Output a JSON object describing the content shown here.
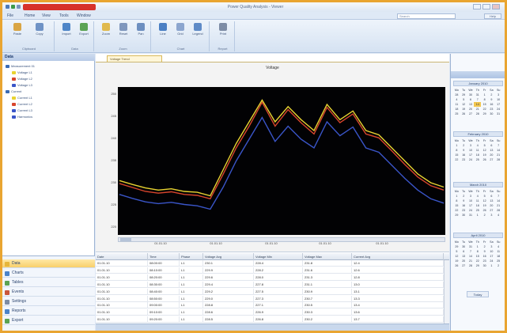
{
  "window": {
    "title": "Power Quality Analysis - Viewer",
    "colors": {
      "frame": "#e9a531",
      "active_tab": "#d7322b"
    }
  },
  "menu": {
    "items": [
      "File",
      "Home",
      "View",
      "Tools",
      "Window"
    ],
    "search_placeholder": "Search",
    "help_label": "Help"
  },
  "ribbon": {
    "groups": [
      {
        "label": "Clipboard",
        "buttons": [
          "Paste",
          "Copy"
        ]
      },
      {
        "label": "Data",
        "buttons": [
          "Import",
          "Export"
        ]
      },
      {
        "label": "Zoom",
        "buttons": [
          "Zoom",
          "Reset",
          "Pan"
        ]
      },
      {
        "label": "Chart",
        "buttons": [
          "Line",
          "Grid",
          "Legend"
        ]
      },
      {
        "label": "Report",
        "buttons": [
          "Print"
        ]
      }
    ]
  },
  "nav": {
    "header": "Data",
    "tree": [
      {
        "label": "Measurement 01",
        "color": "#3b6bb5",
        "level": 0
      },
      {
        "label": "Voltage L1",
        "color": "#e8d331",
        "level": 1
      },
      {
        "label": "Voltage L2",
        "color": "#d8452c",
        "level": 1
      },
      {
        "label": "Voltage L3",
        "color": "#3a55c8",
        "level": 1
      },
      {
        "label": "Current",
        "color": "#3b6bb5",
        "level": 0
      },
      {
        "label": "Current L1",
        "color": "#e8d331",
        "level": 1
      },
      {
        "label": "Current L2",
        "color": "#d8452c",
        "level": 1
      },
      {
        "label": "Current L3",
        "color": "#3a55c8",
        "level": 1
      },
      {
        "label": "Harmonics",
        "color": "#3a55c8",
        "level": 1
      }
    ],
    "buttons": [
      {
        "label": "Data",
        "icon": "folder-icon",
        "color": "#e6b63c",
        "selected": true
      },
      {
        "label": "Charts",
        "icon": "chart-icon",
        "color": "#4b83c9",
        "selected": false
      },
      {
        "label": "Tables",
        "icon": "table-icon",
        "color": "#5ba353",
        "selected": false
      },
      {
        "label": "Events",
        "icon": "event-icon",
        "color": "#c9563b",
        "selected": false
      },
      {
        "label": "Settings",
        "icon": "gear-icon",
        "color": "#7d8ca5",
        "selected": false
      },
      {
        "label": "Reports",
        "icon": "report-icon",
        "color": "#4b83c9",
        "selected": false
      },
      {
        "label": "Export",
        "icon": "export-icon",
        "color": "#5ba353",
        "selected": false
      }
    ]
  },
  "main": {
    "doc_tab": "Voltage Trend",
    "chart_title": "Voltage",
    "y_ticks": [
      "250",
      "245",
      "240",
      "235",
      "230",
      "225",
      "220"
    ],
    "x_ticks": [
      [
        "08:00:00",
        "01.01.10"
      ],
      [
        "10:00:00",
        "01.01.10"
      ],
      [
        "12:00:00",
        "01.01.10"
      ],
      [
        "14:00:00",
        "01.01.10"
      ],
      [
        "16:00:00",
        "01.01.10"
      ]
    ]
  },
  "chart_data": {
    "type": "line",
    "title": "Voltage",
    "ylim": [
      218,
      252
    ],
    "x": [
      0,
      4,
      8,
      12,
      16,
      20,
      24,
      28,
      32,
      36,
      40,
      44,
      48,
      52,
      56,
      60,
      64,
      68,
      72,
      76,
      80,
      84,
      88,
      92,
      96,
      100
    ],
    "series": [
      {
        "name": "L1",
        "color": "#e8d331",
        "values": [
          230.5,
          229.6,
          228.8,
          228.3,
          228.6,
          228.0,
          227.8,
          227.0,
          233.0,
          239.0,
          244.0,
          249.0,
          244.0,
          247.5,
          244.5,
          242.0,
          248.0,
          244.5,
          246.5,
          242.0,
          241.0,
          238.0,
          235.0,
          232.0,
          230.0,
          229.0
        ]
      },
      {
        "name": "L2",
        "color": "#d8452c",
        "values": [
          229.8,
          228.9,
          228.0,
          227.6,
          227.9,
          227.3,
          227.1,
          226.3,
          232.0,
          238.0,
          243.0,
          248.5,
          243.0,
          246.8,
          243.8,
          241.2,
          247.3,
          243.8,
          245.8,
          241.2,
          240.3,
          237.3,
          234.2,
          231.3,
          229.3,
          228.3
        ]
      },
      {
        "name": "L3",
        "color": "#3a55c8",
        "values": [
          227.3,
          226.4,
          225.6,
          225.2,
          225.5,
          225.0,
          224.7,
          223.9,
          229.0,
          235.0,
          240.0,
          245.0,
          239.5,
          243.0,
          240.0,
          238.0,
          244.0,
          240.8,
          242.8,
          238.0,
          237.0,
          234.0,
          231.0,
          228.3,
          226.3,
          225.3
        ]
      }
    ]
  },
  "table": {
    "columns": [
      "Date",
      "Time",
      "Phase",
      "Voltage Avg",
      "Voltage Min",
      "Voltage Max",
      "Current Avg"
    ],
    "rows": [
      [
        "01.01.10",
        "08:00:00",
        "L1",
        "230.1",
        "228.4",
        "231.8",
        "12.4"
      ],
      [
        "01.01.10",
        "08:10:00",
        "L1",
        "229.9",
        "228.2",
        "231.6",
        "12.6"
      ],
      [
        "01.01.10",
        "08:20:00",
        "L1",
        "229.6",
        "228.0",
        "231.3",
        "12.8"
      ],
      [
        "01.01.10",
        "08:30:00",
        "L1",
        "229.4",
        "227.8",
        "231.1",
        "13.0"
      ],
      [
        "01.01.10",
        "08:40:00",
        "L1",
        "229.2",
        "227.5",
        "230.9",
        "13.1"
      ],
      [
        "01.01.10",
        "08:50:00",
        "L1",
        "229.0",
        "227.3",
        "230.7",
        "13.3"
      ],
      [
        "01.01.10",
        "09:00:00",
        "L1",
        "228.8",
        "227.1",
        "230.5",
        "13.4"
      ],
      [
        "01.01.10",
        "09:10:00",
        "L1",
        "228.6",
        "226.9",
        "230.3",
        "13.6"
      ],
      [
        "01.01.10",
        "09:20:00",
        "L1",
        "228.5",
        "226.8",
        "230.2",
        "13.7"
      ]
    ]
  },
  "calendar": {
    "day_names": [
      "Mo",
      "Tu",
      "We",
      "Th",
      "Fr",
      "Sa",
      "Su"
    ],
    "months": [
      {
        "name": "January 2010",
        "today": "14",
        "weeks": [
          [
            "28",
            "29",
            "30",
            "31",
            "1",
            "2",
            "3"
          ],
          [
            "4",
            "5",
            "6",
            "7",
            "8",
            "9",
            "10"
          ],
          [
            "11",
            "12",
            "13",
            "14",
            "15",
            "16",
            "17"
          ],
          [
            "18",
            "19",
            "20",
            "21",
            "22",
            "23",
            "24"
          ],
          [
            "25",
            "26",
            "27",
            "28",
            "29",
            "30",
            "31"
          ]
        ]
      },
      {
        "name": "February 2010",
        "today": "",
        "weeks": [
          [
            "1",
            "2",
            "3",
            "4",
            "5",
            "6",
            "7"
          ],
          [
            "8",
            "9",
            "10",
            "11",
            "12",
            "13",
            "14"
          ],
          [
            "15",
            "16",
            "17",
            "18",
            "19",
            "20",
            "21"
          ],
          [
            "22",
            "23",
            "24",
            "25",
            "26",
            "27",
            "28"
          ]
        ]
      },
      {
        "name": "March 2010",
        "today": "",
        "weeks": [
          [
            "1",
            "2",
            "3",
            "4",
            "5",
            "6",
            "7"
          ],
          [
            "8",
            "9",
            "10",
            "11",
            "12",
            "13",
            "14"
          ],
          [
            "15",
            "16",
            "17",
            "18",
            "19",
            "20",
            "21"
          ],
          [
            "22",
            "23",
            "24",
            "25",
            "26",
            "27",
            "28"
          ],
          [
            "29",
            "30",
            "31",
            "1",
            "2",
            "3",
            "4"
          ]
        ]
      },
      {
        "name": "April 2010",
        "today": "",
        "weeks": [
          [
            "29",
            "30",
            "31",
            "1",
            "2",
            "3",
            "4"
          ],
          [
            "5",
            "6",
            "7",
            "8",
            "9",
            "10",
            "11"
          ],
          [
            "12",
            "13",
            "14",
            "15",
            "16",
            "17",
            "18"
          ],
          [
            "19",
            "20",
            "21",
            "22",
            "23",
            "24",
            "25"
          ],
          [
            "26",
            "27",
            "28",
            "29",
            "30",
            "1",
            "2"
          ]
        ]
      }
    ],
    "footer": "Today"
  }
}
